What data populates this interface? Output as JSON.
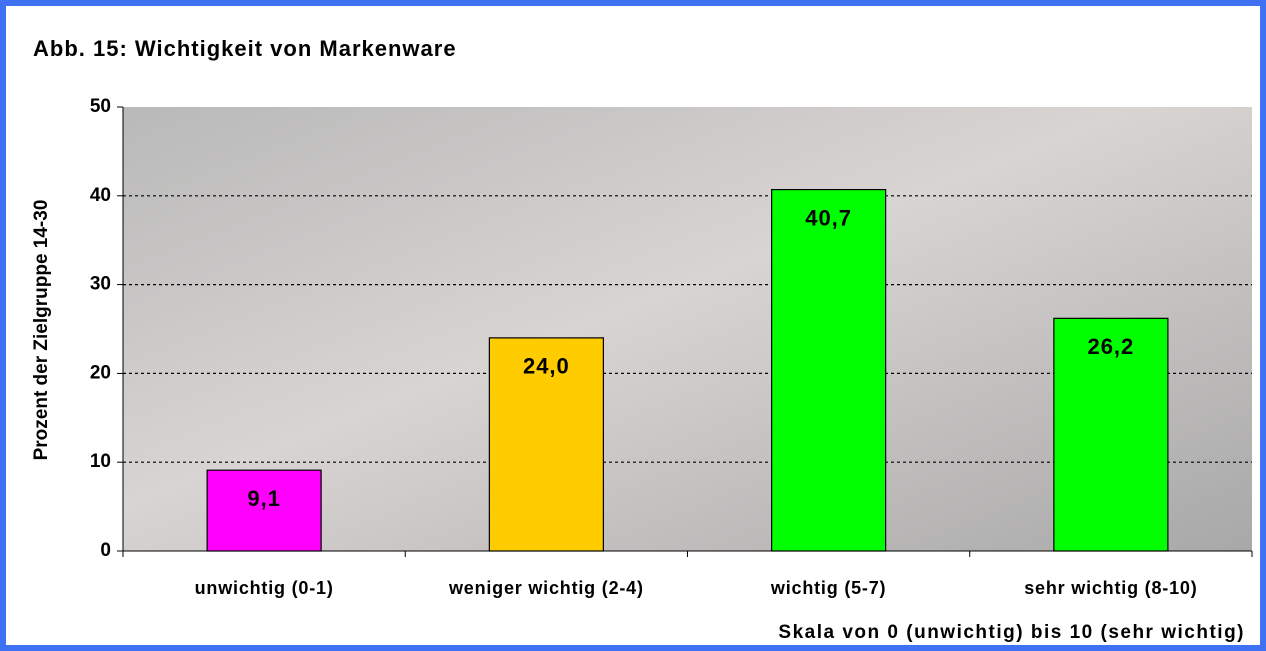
{
  "chart_data": {
    "type": "bar",
    "title": "Abb. 15: Wichtigkeit von Markenware",
    "y_label": "Prozent der Zielgruppe 14-30",
    "x_label": "Skala von 0 (unwichtig) bis 10 (sehr wichtig)",
    "categories": [
      "unwichtig (0-1)",
      "weniger wichtig (2-4)",
      "wichtig (5-7)",
      "sehr wichtig (8-10)"
    ],
    "values": [
      9.1,
      24.0,
      40.7,
      26.2
    ],
    "value_labels": [
      "9,1",
      "24,0",
      "40,7",
      "26,2"
    ],
    "colors": [
      "#ff00ff",
      "#ffcc00",
      "#00ff00",
      "#00ff00"
    ],
    "ylim": [
      0,
      50
    ],
    "yticks": [
      0,
      10,
      20,
      30,
      40,
      50
    ],
    "grid": true
  }
}
